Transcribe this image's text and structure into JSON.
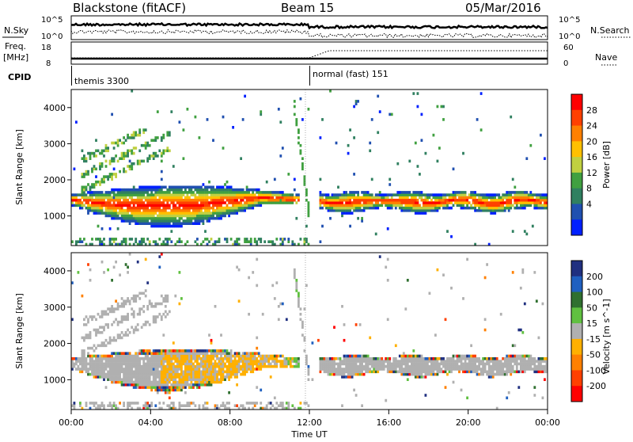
{
  "header": {
    "station": "Blackstone (fitACF)",
    "beam": "Beam 15",
    "date": "05/Mar/2016"
  },
  "noise_panel": {
    "left_label": "N.Sky",
    "right_label": "N.Search",
    "left_ticks": [
      "10^5",
      "10^0"
    ],
    "right_ticks": [
      "10^5",
      "10^0"
    ]
  },
  "freq_panel": {
    "left_label": "Freq.",
    "left_unit": "[MHz]",
    "left_ticks": [
      "18",
      "8"
    ],
    "right_label": "Nave",
    "right_ticks": [
      "60",
      "0"
    ],
    "cpid_label": "CPID",
    "cpid_segments": [
      {
        "name": "themis 3300",
        "start_hour": 0,
        "end_hour": 12.0
      },
      {
        "name": "normal (fast) 151",
        "start_hour": 12.0,
        "end_hour": 24.0
      }
    ],
    "nave_step_hour": 13.0
  },
  "power_panel": {
    "ylabel": "Slant Range [km]",
    "colorbar_label": "Power [dB]",
    "colorbar_ticks": [
      "28",
      "24",
      "20",
      "16",
      "12",
      "8",
      "4"
    ],
    "colors": [
      "#ff0000",
      "#ff4000",
      "#ff8000",
      "#ffc000",
      "#c0d040",
      "#40a040",
      "#308060",
      "#2050b0",
      "#0020ff"
    ]
  },
  "velocity_panel": {
    "ylabel": "Slant Range [km]",
    "colorbar_label": "Velocity [m s^-1]",
    "colorbar_ticks": [
      "200",
      "100",
      "50",
      "15",
      "-15",
      "-50",
      "-100",
      "-200"
    ],
    "colors": [
      "#203080",
      "#2060c0",
      "#307030",
      "#60c040",
      "#b0b0b0",
      "#ffb000",
      "#ff8000",
      "#ff4000",
      "#ff0000"
    ]
  },
  "axes": {
    "y_ticks": [
      "4000",
      "3000",
      "2000",
      "1000"
    ],
    "x_ticks": [
      "00:00",
      "04:00",
      "08:00",
      "12:00",
      "16:00",
      "20:00",
      "00:00"
    ],
    "xlabel": "Time UT"
  },
  "chart_data": {
    "type": "heatmap",
    "title": "Blackstone (fitACF)  Beam 15  05/Mar/2016",
    "xlabel": "Time UT",
    "ylabel": "Slant Range [km]",
    "xlim": [
      0,
      24
    ],
    "ylim": [
      180,
      4500
    ],
    "features": [
      {
        "name": "main band before 12:00",
        "start_hour": 0.0,
        "end_hour": 11.5,
        "range_low_km": 700,
        "range_high_km": 1800,
        "peak_power_db": 28
      },
      {
        "name": "main band after 12:30",
        "start_hour": 12.5,
        "end_hour": 24.0,
        "range_low_km": 1150,
        "range_high_km": 1650,
        "peak_power_db": 22
      },
      {
        "name": "diagonal streaks",
        "start_hour": 0.5,
        "end_hour": 5.0,
        "range_low_km": 1900,
        "range_high_km": 3200
      }
    ]
  }
}
